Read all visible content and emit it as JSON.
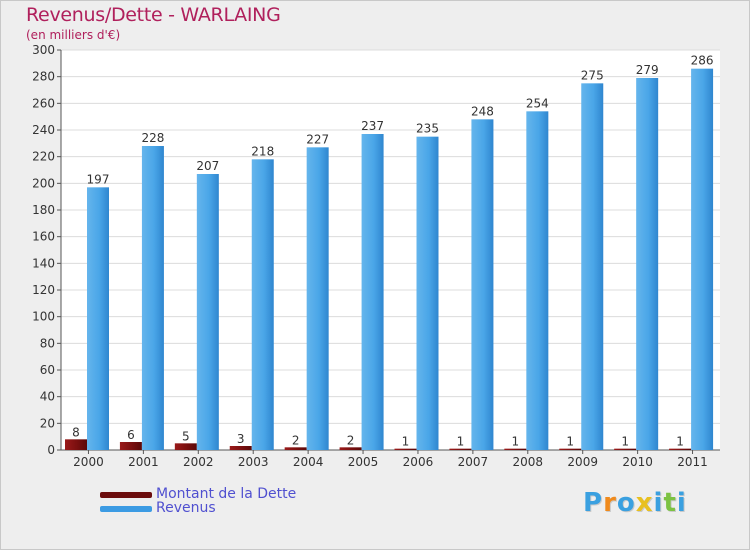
{
  "title": "Revenus/Dette - WARLAING",
  "subtitle": "(en milliers d'€)",
  "chart_data": {
    "type": "bar",
    "categories": [
      "2000",
      "2001",
      "2002",
      "2003",
      "2004",
      "2005",
      "2006",
      "2007",
      "2008",
      "2009",
      "2010",
      "2011"
    ],
    "series": [
      {
        "name": "Montant de la Dette",
        "values": [
          8,
          6,
          5,
          3,
          2,
          2,
          1,
          1,
          1,
          1,
          1,
          1
        ],
        "color": "#7a0f0f"
      },
      {
        "name": "Revenus",
        "values": [
          197,
          228,
          207,
          218,
          227,
          237,
          235,
          248,
          254,
          275,
          279,
          286
        ],
        "color": "#3c9be3"
      }
    ],
    "ylim": [
      0,
      300
    ],
    "yticks": [
      0,
      20,
      40,
      60,
      80,
      100,
      120,
      140,
      160,
      180,
      200,
      220,
      240,
      260,
      280,
      300
    ],
    "grid": true,
    "legend": "bottom-left"
  },
  "legend": {
    "items": [
      {
        "label": "Montant de la Dette",
        "color": "#6b0c0c"
      },
      {
        "label": "Revenus",
        "color": "#3c9be3"
      }
    ]
  },
  "logo": {
    "text": "Proxiti"
  }
}
